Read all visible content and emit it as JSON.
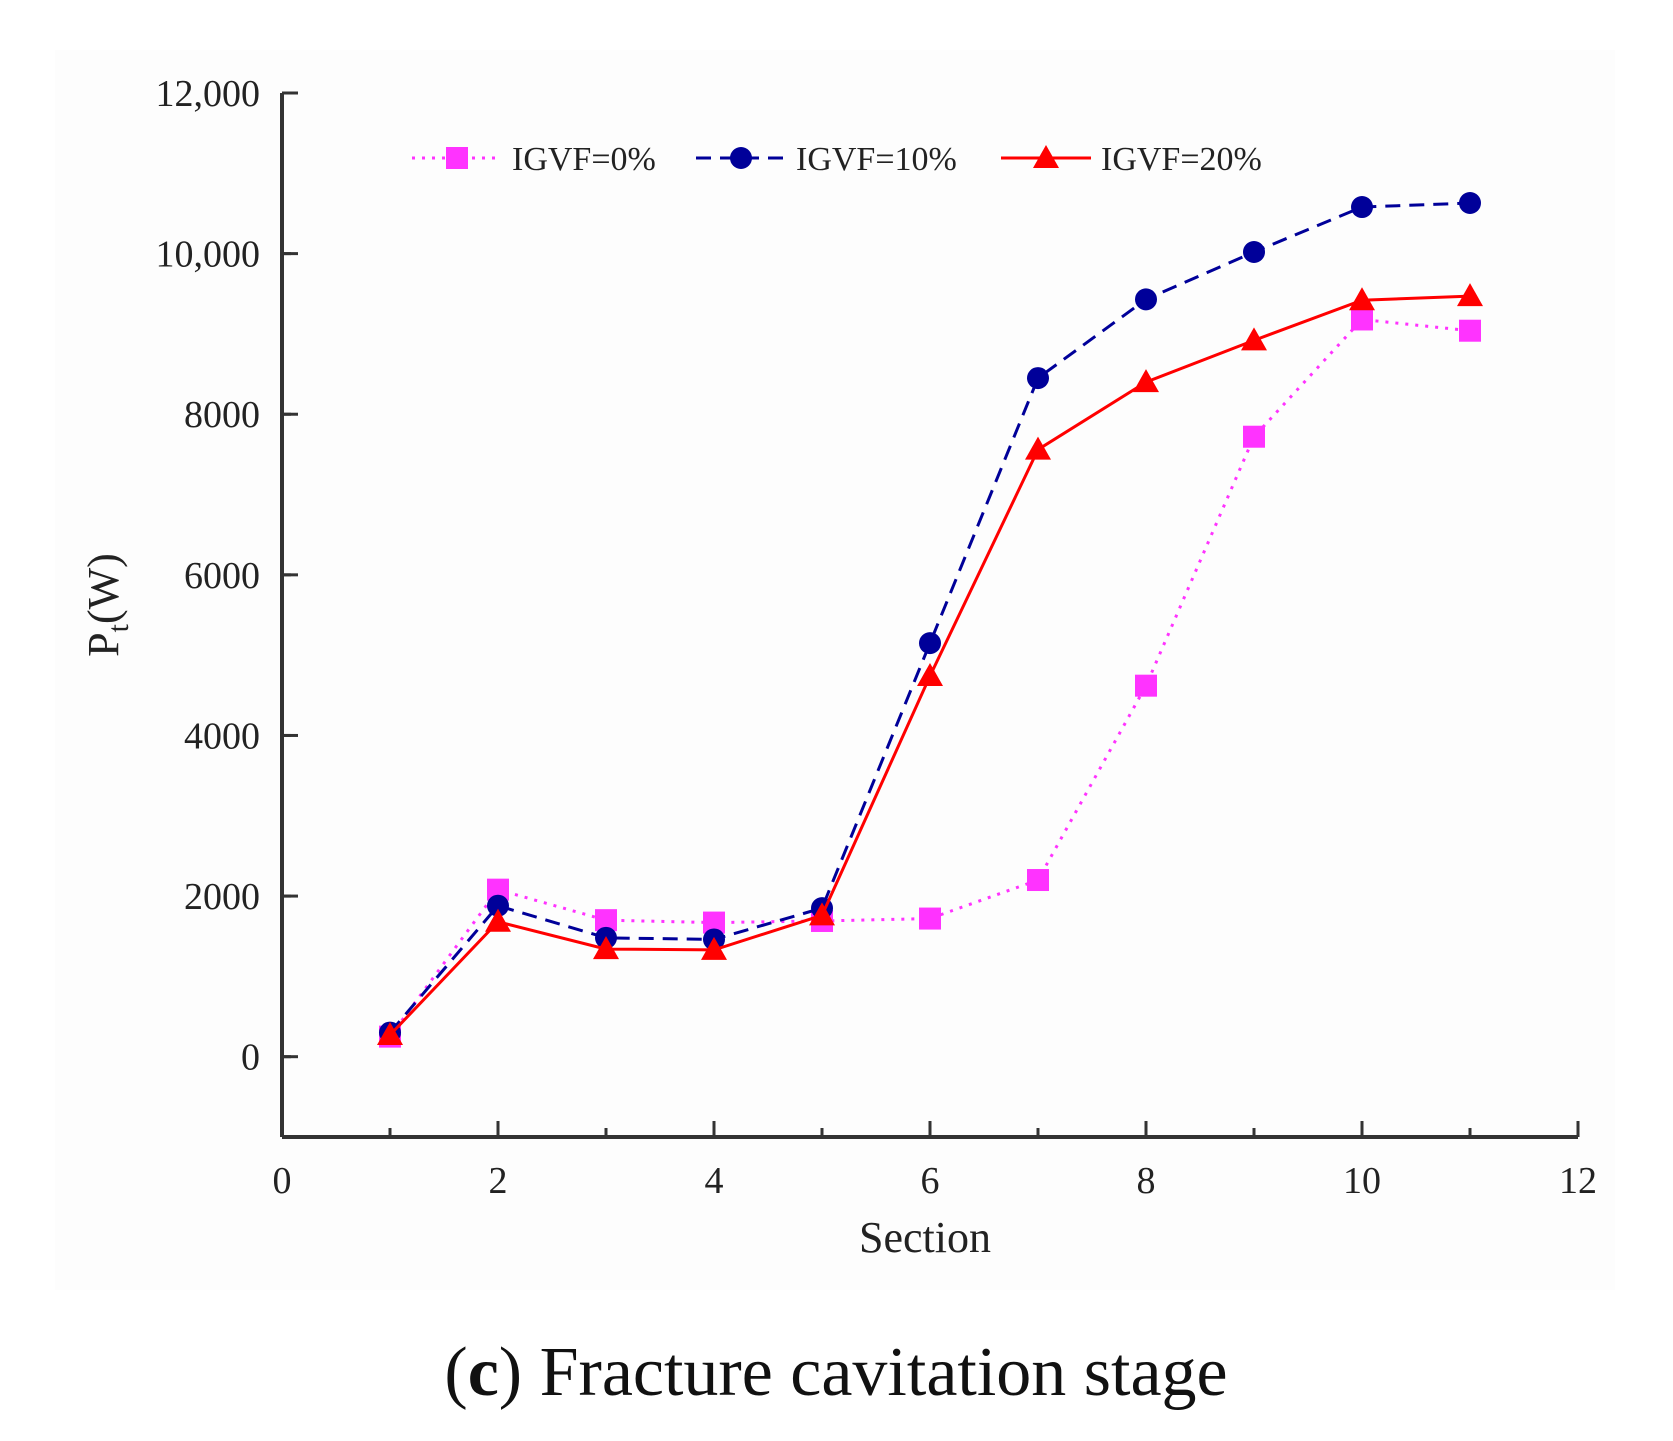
{
  "chart_data": {
    "type": "line",
    "title": "",
    "xlabel": "Section",
    "ylabel": "P",
    "ylabel_subscript": "t",
    "ylabel_unit": "(W)",
    "xlim": [
      0,
      12
    ],
    "ylim": [
      -1000,
      12000
    ],
    "xticks": [
      0,
      2,
      4,
      6,
      8,
      10,
      12
    ],
    "xtick_labels": [
      "0",
      "2",
      "4",
      "6",
      "8",
      "10",
      "12"
    ],
    "yticks": [
      0,
      2000,
      4000,
      6000,
      8000,
      10000,
      12000
    ],
    "ytick_labels": [
      "0",
      "2000",
      "4000",
      "6000",
      "8000",
      "10,000",
      "12,000"
    ],
    "grid": false,
    "legend_position": "top",
    "x": [
      1,
      2,
      3,
      4,
      5,
      6,
      7,
      8,
      9,
      10,
      11
    ],
    "series": [
      {
        "name": "IGVF=0%",
        "color": "#ff33ff",
        "line_style": "dotted",
        "marker": "square",
        "values": [
          250,
          2080,
          1700,
          1670,
          1690,
          1720,
          2200,
          4620,
          7720,
          9180,
          9040
        ]
      },
      {
        "name": "IGVF=10%",
        "color": "#000099",
        "line_style": "dashed",
        "marker": "circle",
        "values": [
          300,
          1880,
          1480,
          1460,
          1850,
          5150,
          8450,
          9430,
          10020,
          10580,
          10630
        ]
      },
      {
        "name": "IGVF=20%",
        "color": "#ff0000",
        "line_style": "solid",
        "marker": "triangle",
        "values": [
          270,
          1680,
          1340,
          1330,
          1760,
          4740,
          7560,
          8400,
          8920,
          9420,
          9470
        ]
      }
    ]
  },
  "caption": {
    "open_paren": "(",
    "letter": "c",
    "rest": ") Fracture cavitation stage"
  }
}
